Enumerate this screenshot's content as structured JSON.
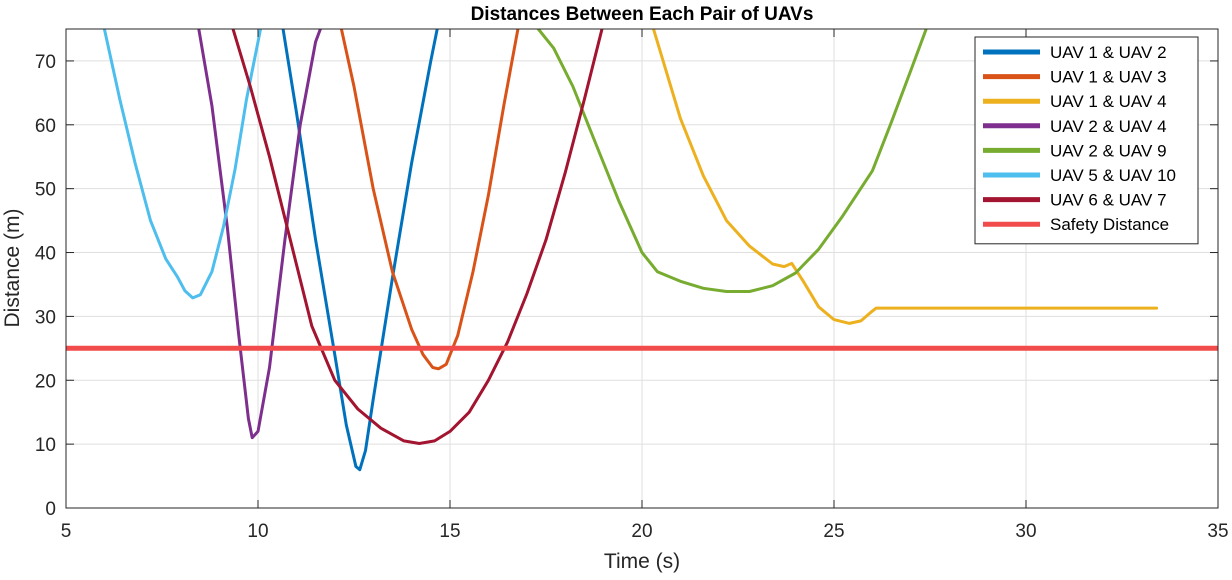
{
  "chart_data": {
    "type": "line",
    "title": "Distances Between Each Pair of UAVs",
    "xlabel": "Time (s)",
    "ylabel": "Distance (m)",
    "xlim": [
      5,
      35
    ],
    "ylim": [
      0,
      75
    ],
    "xticks": [
      5,
      10,
      15,
      20,
      25,
      30,
      35
    ],
    "yticks": [
      0,
      10,
      20,
      30,
      40,
      50,
      60,
      70
    ],
    "grid": true,
    "legend_position": "top-right",
    "series": [
      {
        "name": "UAV 1 & UAV 2",
        "color": "#0072BD",
        "x": [
          10.6,
          11.0,
          11.5,
          12.0,
          12.3,
          12.55,
          12.65,
          12.8,
          13.0,
          13.5,
          14.0,
          14.5,
          14.7
        ],
        "y": [
          77,
          62,
          42,
          24,
          13,
          6.5,
          6,
          9,
          17,
          36,
          54,
          70,
          76
        ]
      },
      {
        "name": "UAV 1 & UAV 3",
        "color": "#D95319",
        "x": [
          12.1,
          12.5,
          13.0,
          13.5,
          14.0,
          14.3,
          14.55,
          14.7,
          14.9,
          15.2,
          15.6,
          16.0,
          16.4,
          16.8
        ],
        "y": [
          77,
          66,
          50,
          37,
          28,
          24,
          22,
          21.8,
          22.5,
          27,
          37,
          49,
          63,
          76
        ]
      },
      {
        "name": "UAV 1 & UAV 4",
        "color": "#EDB120",
        "x": [
          20.3,
          21.0,
          21.6,
          22.2,
          22.8,
          23.4,
          23.7,
          23.9,
          24.2,
          24.6,
          25.0,
          25.4,
          25.7,
          25.95,
          26.1,
          28.0,
          30.0,
          32.0,
          33.4
        ],
        "y": [
          75,
          61,
          52,
          45,
          41,
          38.2,
          37.8,
          38.3,
          35.5,
          31.5,
          29.5,
          28.9,
          29.3,
          30.6,
          31.3,
          31.3,
          31.3,
          31.3,
          31.3
        ]
      },
      {
        "name": "UAV 2 & UAV 4",
        "color": "#7E2F8E",
        "x": [
          8.4,
          8.8,
          9.2,
          9.5,
          9.75,
          9.85,
          10.0,
          10.3,
          10.7,
          11.1,
          11.5,
          11.75
        ],
        "y": [
          77,
          63,
          44,
          27,
          14,
          11,
          12,
          22,
          42,
          60,
          73,
          77
        ]
      },
      {
        "name": "UAV 2 & UAV 9",
        "color": "#77AC30",
        "x": [
          17.3,
          17.7,
          18.2,
          18.8,
          19.4,
          20.0,
          20.4,
          21.0,
          21.6,
          22.2,
          22.8,
          23.4,
          24.0,
          24.6,
          25.2,
          26.0,
          26.5,
          27.0,
          27.4
        ],
        "y": [
          75,
          72,
          66,
          57,
          48,
          40,
          37,
          35.5,
          34.4,
          33.9,
          33.9,
          34.8,
          36.8,
          40.5,
          45.5,
          52.8,
          60.5,
          68.5,
          75
        ]
      },
      {
        "name": "UAV 5 & UAV 10",
        "color": "#4DBEEE",
        "x": [
          6.0,
          6.4,
          6.8,
          7.2,
          7.6,
          7.9,
          8.1,
          8.3,
          8.5,
          8.8,
          9.1,
          9.4,
          9.7,
          10.0,
          10.1
        ],
        "y": [
          75,
          64,
          54,
          45,
          39,
          36.2,
          34,
          32.9,
          33.4,
          37,
          44,
          53,
          64,
          73,
          76
        ]
      },
      {
        "name": "UAV 6 & UAV 7",
        "color": "#A2142F",
        "x": [
          9.3,
          9.8,
          10.3,
          10.8,
          11.4,
          12.0,
          12.6,
          13.2,
          13.8,
          14.2,
          14.6,
          15.0,
          15.5,
          16.0,
          16.5,
          17.0,
          17.5,
          18.0,
          18.5,
          19.0
        ],
        "y": [
          76,
          66,
          55,
          43,
          28.5,
          20,
          15.5,
          12.5,
          10.5,
          10.1,
          10.5,
          12,
          15,
          20,
          26,
          33.5,
          42,
          52.5,
          64,
          76
        ]
      },
      {
        "name": "Safety Distance",
        "color": "#F24B4B",
        "x": [
          5,
          35
        ],
        "y": [
          25,
          25
        ]
      }
    ]
  }
}
